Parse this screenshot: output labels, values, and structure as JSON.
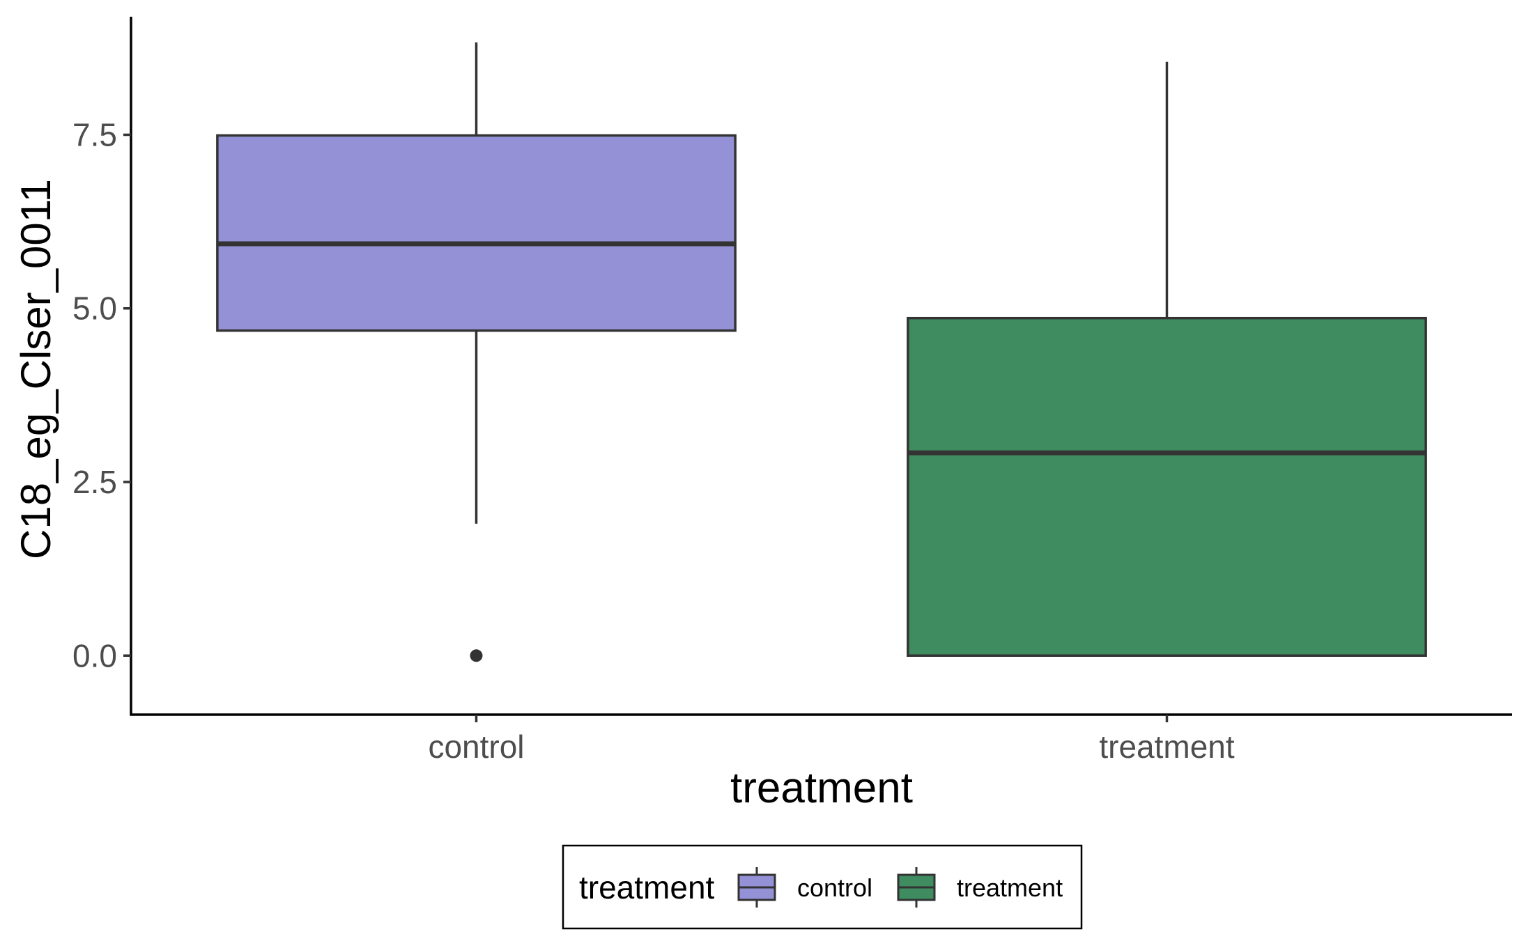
{
  "chart_data": {
    "type": "box",
    "xlabel": "treatment",
    "ylabel": "C18_eg_Clser_0011",
    "categories": [
      "control",
      "treatment"
    ],
    "ylim": [
      -0.85,
      9.2
    ],
    "yticks": [
      0.0,
      2.5,
      5.0,
      7.5
    ],
    "ytick_labels": [
      "0.0",
      "2.5",
      "5.0",
      "7.5"
    ],
    "grid": false,
    "legend_position": "bottom",
    "legend": {
      "title": "treatment",
      "entries": [
        "control",
        "treatment"
      ]
    },
    "series": [
      {
        "category": "control",
        "color": "#9491d6",
        "whisker_low": 1.9,
        "q1": 4.68,
        "median": 5.93,
        "q3": 7.49,
        "whisker_high": 8.83,
        "outliers": [
          0.0
        ]
      },
      {
        "category": "treatment",
        "color": "#3f8c60",
        "whisker_low": 0.0,
        "q1": 0.0,
        "median": 2.92,
        "q3": 4.86,
        "whisker_high": 8.55,
        "outliers": []
      }
    ]
  }
}
